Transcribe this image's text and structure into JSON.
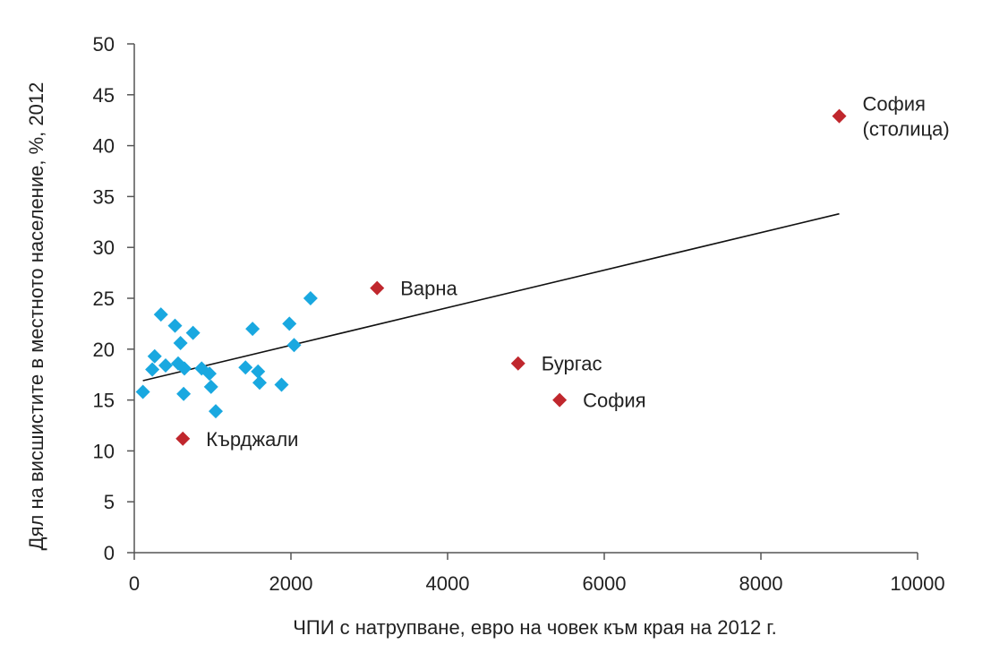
{
  "chart_data": {
    "type": "scatter",
    "title": "",
    "xlabel": "ЧПИ с натрупване, евро на човек към края на 2012 г.",
    "ylabel": "Дял на висшистите в местното население, %, 2012",
    "xlim": [
      0,
      10000
    ],
    "ylim": [
      0,
      50
    ],
    "xticks": [
      0,
      2000,
      4000,
      6000,
      8000,
      10000
    ],
    "yticks": [
      0,
      5,
      10,
      15,
      20,
      25,
      30,
      35,
      40,
      45,
      50
    ],
    "grid": false,
    "colors": {
      "regular": "#19A8E0",
      "highlight": "#C0272D",
      "trendline": "#111111"
    },
    "series": [
      {
        "color": "#19A8E0",
        "marker": "diamond",
        "points": [
          {
            "x": 110,
            "y": 15.8
          },
          {
            "x": 230,
            "y": 18.0
          },
          {
            "x": 260,
            "y": 19.3
          },
          {
            "x": 340,
            "y": 23.4
          },
          {
            "x": 400,
            "y": 18.4
          },
          {
            "x": 520,
            "y": 22.3
          },
          {
            "x": 560,
            "y": 18.6
          },
          {
            "x": 590,
            "y": 20.6
          },
          {
            "x": 630,
            "y": 15.6
          },
          {
            "x": 640,
            "y": 18.1
          },
          {
            "x": 750,
            "y": 21.6
          },
          {
            "x": 860,
            "y": 18.1
          },
          {
            "x": 960,
            "y": 17.6
          },
          {
            "x": 980,
            "y": 16.3
          },
          {
            "x": 1040,
            "y": 13.9
          },
          {
            "x": 1420,
            "y": 18.2
          },
          {
            "x": 1510,
            "y": 22.0
          },
          {
            "x": 1580,
            "y": 17.8
          },
          {
            "x": 1600,
            "y": 16.7
          },
          {
            "x": 1880,
            "y": 16.5
          },
          {
            "x": 1980,
            "y": 22.5
          },
          {
            "x": 2040,
            "y": 20.4
          },
          {
            "x": 2250,
            "y": 25.0
          }
        ]
      },
      {
        "color": "#C0272D",
        "marker": "diamond",
        "points": [
          {
            "x": 620,
            "y": 11.2,
            "label": "Кърджали"
          },
          {
            "x": 3100,
            "y": 26.0,
            "label": "Варна"
          },
          {
            "x": 4900,
            "y": 18.6,
            "label": "Бургас"
          },
          {
            "x": 5430,
            "y": 15.0,
            "label": "София"
          },
          {
            "x": 9000,
            "y": 42.9,
            "label": "София\n(столица)"
          }
        ]
      }
    ],
    "trendline": {
      "x": [
        110,
        9000
      ],
      "y": [
        16.9,
        33.3
      ]
    }
  }
}
